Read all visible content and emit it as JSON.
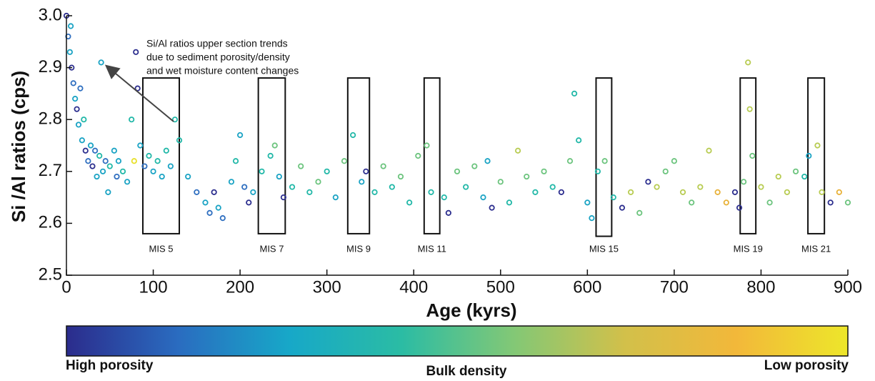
{
  "chart_data": {
    "type": "scatter",
    "xlabel": "Age (kyrs)",
    "ylabel": "Si /Al ratios (cps)",
    "xlim": [
      0,
      900
    ],
    "xticks": [
      0,
      100,
      200,
      300,
      400,
      500,
      600,
      700,
      800,
      900
    ],
    "ylim": [
      2.5,
      3.0
    ],
    "yticks": [
      2.5,
      2.6,
      2.7,
      2.8,
      2.9,
      {
        "value": 3.0,
        "label": "3.0"
      }
    ],
    "annotation": [
      "Si/Al ratios upper section trends",
      "due to sediment porosity/density",
      "and wet moisture content changes"
    ],
    "regions": [
      {
        "label": "MIS 5",
        "x": [
          88,
          130
        ],
        "y": [
          2.58,
          2.88
        ]
      },
      {
        "label": "MIS 7",
        "x": [
          221,
          252
        ],
        "y": [
          2.58,
          2.88
        ]
      },
      {
        "label": "MIS 9",
        "x": [
          324,
          349
        ],
        "y": [
          2.58,
          2.88
        ]
      },
      {
        "label": "MIS 11",
        "x": [
          412,
          430
        ],
        "y": [
          2.58,
          2.88
        ]
      },
      {
        "label": "MIS 15",
        "x": [
          610,
          628
        ],
        "y": [
          2.575,
          2.88
        ]
      },
      {
        "label": "MIS 19",
        "x": [
          776,
          794
        ],
        "y": [
          2.58,
          2.88
        ]
      },
      {
        "label": "MIS 21",
        "x": [
          854,
          873
        ],
        "y": [
          2.58,
          2.88
        ]
      }
    ],
    "colorbar": {
      "title": "Bulk density",
      "low_label": "High porosity",
      "high_label": "Low porosity",
      "colormap": [
        "#2b2c8c",
        "#2a6cc0",
        "#17a8c8",
        "#2bbca4",
        "#82c876",
        "#d2c04a",
        "#f2b83a",
        "#ede62a"
      ]
    },
    "x": [
      0,
      2,
      4,
      5,
      6,
      8,
      10,
      12,
      14,
      16,
      18,
      20,
      22,
      25,
      28,
      30,
      33,
      35,
      38,
      40,
      42,
      45,
      48,
      50,
      55,
      58,
      60,
      65,
      70,
      75,
      78,
      80,
      82,
      85,
      90,
      95,
      100,
      105,
      110,
      115,
      120,
      125,
      130,
      140,
      150,
      160,
      165,
      170,
      175,
      180,
      190,
      195,
      200,
      205,
      210,
      215,
      225,
      235,
      240,
      245,
      250,
      260,
      270,
      280,
      290,
      300,
      310,
      320,
      330,
      340,
      345,
      355,
      365,
      375,
      385,
      395,
      405,
      415,
      420,
      435,
      440,
      450,
      460,
      470,
      480,
      485,
      490,
      500,
      510,
      520,
      530,
      540,
      550,
      560,
      570,
      580,
      585,
      590,
      600,
      605,
      612,
      620,
      630,
      640,
      650,
      660,
      670,
      680,
      690,
      700,
      710,
      720,
      730,
      740,
      750,
      760,
      770,
      775,
      780,
      785,
      787,
      790,
      800,
      810,
      820,
      830,
      840,
      850,
      855,
      865,
      870,
      880,
      890,
      900
    ],
    "series": [
      {
        "values": [
          3.0,
          2.96,
          2.93,
          2.98,
          2.9,
          2.87,
          2.84,
          2.82,
          2.79,
          2.86,
          2.76,
          2.8,
          2.74,
          2.72,
          2.75,
          2.71,
          2.74,
          2.69,
          2.73,
          2.91,
          2.7,
          2.72,
          2.66,
          2.71,
          2.74,
          2.69,
          2.72,
          2.7,
          2.68,
          2.8,
          2.72,
          2.93,
          2.86,
          2.75,
          2.71,
          2.73,
          2.7,
          2.72,
          2.69,
          2.74,
          2.71,
          2.8,
          2.76,
          2.69,
          2.66,
          2.64,
          2.62,
          2.66,
          2.63,
          2.61,
          2.68,
          2.72,
          2.77,
          2.67,
          2.64,
          2.66,
          2.7,
          2.73,
          2.75,
          2.69,
          2.65,
          2.67,
          2.71,
          2.66,
          2.68,
          2.7,
          2.65,
          2.72,
          2.77,
          2.68,
          2.7,
          2.66,
          2.71,
          2.67,
          2.69,
          2.64,
          2.73,
          2.75,
          2.66,
          2.65,
          2.62,
          2.7,
          2.67,
          2.71,
          2.65,
          2.72,
          2.63,
          2.68,
          2.64,
          2.74,
          2.69,
          2.66,
          2.7,
          2.67,
          2.66,
          2.72,
          2.85,
          2.76,
          2.64,
          2.61,
          2.7,
          2.72,
          2.65,
          2.63,
          2.66,
          2.62,
          2.68,
          2.67,
          2.7,
          2.72,
          2.66,
          2.64,
          2.67,
          2.74,
          2.66,
          2.64,
          2.66,
          2.63,
          2.68,
          2.91,
          2.82,
          2.73,
          2.67,
          2.64,
          2.69,
          2.66,
          2.7,
          2.69,
          2.73,
          2.75,
          2.66,
          2.64,
          2.66,
          2.64
        ],
        "colors": [
          "#2d2f8f",
          "#2f6fc0",
          "#1aa3c4",
          "#1aa3c4",
          "#2d2f8f",
          "#2f6fc0",
          "#1aa3c4",
          "#2d2f8f",
          "#1aa3c4",
          "#2f6fc0",
          "#1aa3c4",
          "#22b8a8",
          "#2d2f8f",
          "#2f6fc0",
          "#1aa3c4",
          "#2d2f8f",
          "#2f6fc0",
          "#1aa3c4",
          "#22b8a8",
          "#1aa3c4",
          "#1aa3c4",
          "#2f6fc0",
          "#1aa3c4",
          "#22b8a8",
          "#1aa3c4",
          "#2f6fc0",
          "#1aa3c4",
          "#22b8a8",
          "#1aa3c4",
          "#22b8a8",
          "#e8e02a",
          "#2d2f8f",
          "#2d2f8f",
          "#1aa3c4",
          "#2f6fc0",
          "#22b8a8",
          "#1aa3c4",
          "#22b8a8",
          "#1aa3c4",
          "#22b8a8",
          "#1aa3c4",
          "#22b8a8",
          "#22b8a8",
          "#1aa3c4",
          "#2f6fc0",
          "#1aa3c4",
          "#2f6fc0",
          "#2d2f8f",
          "#1aa3c4",
          "#2f6fc0",
          "#1aa3c4",
          "#22b8a8",
          "#1aa3c4",
          "#2f6fc0",
          "#2d2f8f",
          "#1aa3c4",
          "#22b8a8",
          "#22b8a8",
          "#6cc47e",
          "#1aa3c4",
          "#2d2f8f",
          "#22b8a8",
          "#6cc47e",
          "#22b8a8",
          "#6cc47e",
          "#22b8a8",
          "#1aa3c4",
          "#6cc47e",
          "#22b8a8",
          "#1aa3c4",
          "#2d2f8f",
          "#22b8a8",
          "#6cc47e",
          "#22b8a8",
          "#6cc47e",
          "#22b8a8",
          "#6cc47e",
          "#6cc47e",
          "#22b8a8",
          "#22b8a8",
          "#2d2f8f",
          "#6cc47e",
          "#22b8a8",
          "#6cc47e",
          "#1aa3c4",
          "#1aa3c4",
          "#2d2f8f",
          "#6cc47e",
          "#22b8a8",
          "#b8cc52",
          "#6cc47e",
          "#22b8a8",
          "#6cc47e",
          "#22b8a8",
          "#2d2f8f",
          "#6cc47e",
          "#22b8a8",
          "#22b8a8",
          "#1aa3c4",
          "#1aa3c4",
          "#22b8a8",
          "#6cc47e",
          "#22b8a8",
          "#2d2f8f",
          "#b8cc52",
          "#6cc47e",
          "#2d2f8f",
          "#b8cc52",
          "#6cc47e",
          "#6cc47e",
          "#b8cc52",
          "#6cc47e",
          "#b8cc52",
          "#b8cc52",
          "#e8b23a",
          "#e8b23a",
          "#2d2f8f",
          "#2d2f8f",
          "#6cc47e",
          "#b8cc52",
          "#b8cc52",
          "#6cc47e",
          "#b8cc52",
          "#6cc47e",
          "#b8cc52",
          "#b8cc52",
          "#6cc47e",
          "#22b8a8",
          "#1aa3c4",
          "#b8cc52",
          "#b8cc52",
          "#2d2f8f",
          "#e8b23a",
          "#6cc47e"
        ]
      }
    ]
  }
}
